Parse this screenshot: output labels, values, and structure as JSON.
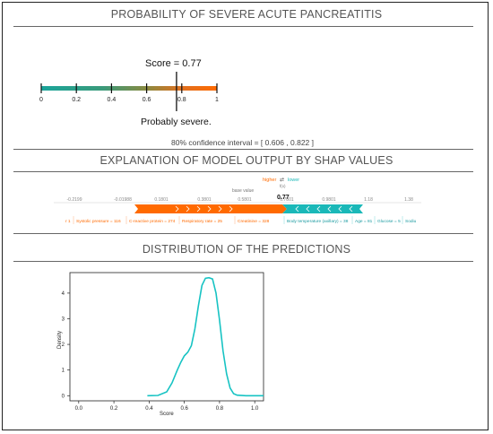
{
  "sections": {
    "probability_title": "PROBABILITY OF SEVERE ACUTE PANCREATITIS",
    "explanation_title": "EXPLANATION OF MODEL OUTPUT BY SHAP VALUES",
    "distribution_title": "DISTRIBUTION OF THE PREDICTIONS"
  },
  "score_gauge": {
    "score_label": "Score = 0.77",
    "score": 0.77,
    "ticks": [
      "0",
      "0.2",
      "0.4",
      "0.6",
      "0.8",
      "1"
    ],
    "verdict": "Probably severe.",
    "confidence": "80% confidence interval = [ 0.606 , 0.822 ]",
    "colors": {
      "low": "#1aa59b",
      "mid": "#7a8a3a",
      "high": "#ff6a00"
    }
  },
  "shap": {
    "legend_higher": "higher",
    "legend_arrows": "⇄",
    "legend_lower": "lower",
    "fx_label": "f(x)",
    "fx_value": "0.77",
    "base_label": "base value",
    "axis_ticks": [
      "-0.2199",
      "-0.01988",
      "0.1801",
      "0.3801",
      "0.5801",
      "0.7801",
      "0.9801",
      "1.18",
      "1.38"
    ],
    "positive_features": [
      "r 1",
      "Systolic pressure = 116",
      "C-reactive protein = 274",
      "Respiratory rate = 25",
      "Creatinine = 328"
    ],
    "negative_features": [
      "Body temperature (axillary) = 38",
      "Age = 81",
      "Glucose = 5",
      "Sodiu"
    ],
    "colors": {
      "positive": "#ff6a00",
      "negative": "#1ab8b8"
    }
  },
  "distribution_chart": {
    "ylabel": "Density",
    "xlabel": "Score",
    "x_ticks": [
      "0.0",
      "0.2",
      "0.4",
      "0.6",
      "0.8",
      "1.0"
    ],
    "y_ticks": [
      "0",
      "1",
      "2",
      "3",
      "4"
    ],
    "line_color": "#17c3c3"
  },
  "chart_data": {
    "type": "line",
    "title": "",
    "xlabel": "Score",
    "ylabel": "Density",
    "xlim": [
      -0.05,
      1.05
    ],
    "ylim": [
      -0.2,
      4.8
    ],
    "grid": false,
    "series": [
      {
        "x": [
          0.39,
          0.45,
          0.5,
          0.53,
          0.56,
          0.58,
          0.6,
          0.62,
          0.64,
          0.66,
          0.68,
          0.7,
          0.72,
          0.74,
          0.76,
          0.78,
          0.8,
          0.82,
          0.84,
          0.86,
          0.88,
          0.9,
          0.95,
          1.05
        ],
        "y": [
          0.0,
          0.01,
          0.15,
          0.5,
          1.0,
          1.3,
          1.55,
          1.7,
          1.95,
          2.6,
          3.5,
          4.3,
          4.58,
          4.6,
          4.55,
          4.0,
          2.95,
          1.75,
          0.85,
          0.3,
          0.08,
          0.02,
          0.0,
          0.0
        ]
      }
    ]
  }
}
